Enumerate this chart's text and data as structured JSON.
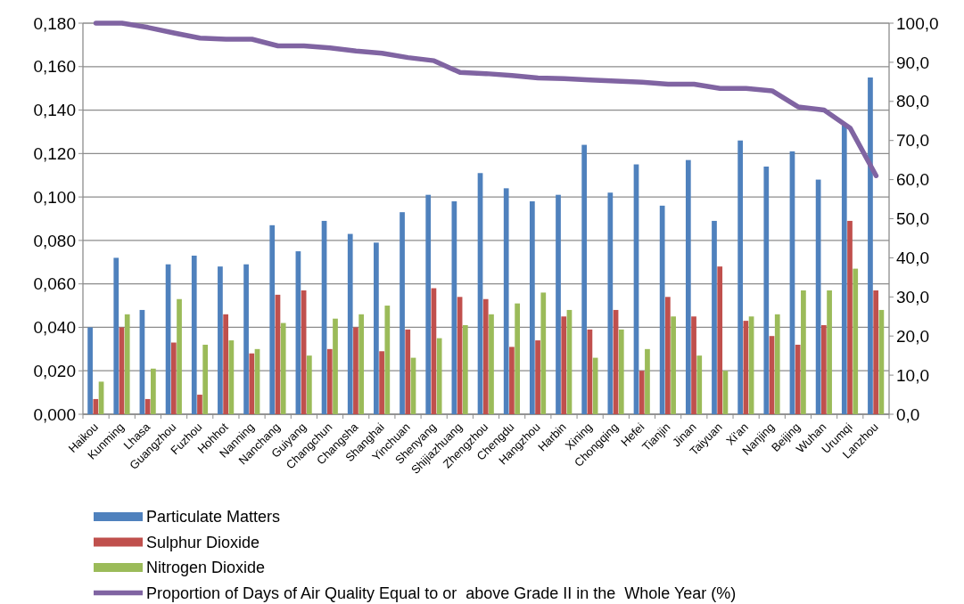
{
  "chart_data": {
    "type": "bar",
    "categories": [
      "Haikou",
      "Kunming",
      "Lhasa",
      "Guangzhou",
      "Fuzhou",
      "Hohhot",
      "Nanning",
      "Nanchang",
      "Guiyang",
      "Changchun",
      "Changsha",
      "Shanghai",
      "Yinchuan",
      "Shenyang",
      "Shijiazhuang",
      "Zhengzhou",
      "Chengdu",
      "Hangzhou",
      "Harbin",
      "Xining",
      "Chongqing",
      "Hefei",
      "Tianjin",
      "Jinan",
      "Taiyuan",
      "Xi'an",
      "Nanjing",
      "Beijing",
      "Wuhan",
      "Urumqi",
      "Lanzhou"
    ],
    "series": [
      {
        "name": "Particulate Matters",
        "color": "#4f81bd",
        "values": [
          0.04,
          0.072,
          0.048,
          0.069,
          0.073,
          0.068,
          0.069,
          0.087,
          0.075,
          0.089,
          0.083,
          0.079,
          0.093,
          0.101,
          0.098,
          0.111,
          0.104,
          0.098,
          0.101,
          0.124,
          0.102,
          0.115,
          0.096,
          0.117,
          0.089,
          0.126,
          0.114,
          0.121,
          0.108,
          0.133,
          0.155
        ]
      },
      {
        "name": "Sulphur Dioxide",
        "color": "#c0504d",
        "values": [
          0.007,
          0.04,
          0.007,
          0.033,
          0.009,
          0.046,
          0.028,
          0.055,
          0.057,
          0.03,
          0.04,
          0.029,
          0.039,
          0.058,
          0.054,
          0.053,
          0.031,
          0.034,
          0.045,
          0.039,
          0.048,
          0.02,
          0.054,
          0.045,
          0.068,
          0.043,
          0.036,
          0.032,
          0.041,
          0.089,
          0.057
        ]
      },
      {
        "name": "Nitrogen Dioxide",
        "color": "#9bbb59",
        "values": [
          0.015,
          0.046,
          0.021,
          0.053,
          0.032,
          0.034,
          0.03,
          0.042,
          0.027,
          0.044,
          0.046,
          0.05,
          0.026,
          0.035,
          0.041,
          0.046,
          0.051,
          0.056,
          0.048,
          0.026,
          0.039,
          0.03,
          0.045,
          0.027,
          0.02,
          0.045,
          0.046,
          0.057,
          0.057,
          0.067,
          0.048
        ]
      },
      {
        "name": "Proportion of Days of Air Quality Equal to or  above Grade II in the  Whole Year (%)",
        "type": "line",
        "axis": "y2",
        "color": "#8064a2",
        "values": [
          100,
          100,
          98.9,
          97.5,
          96.2,
          95.9,
          95.9,
          94.2,
          94.2,
          93.7,
          92.9,
          92.3,
          91.2,
          90.4,
          87.4,
          87.1,
          86.6,
          86.0,
          85.8,
          85.5,
          85.2,
          84.9,
          84.4,
          84.4,
          83.3,
          83.3,
          82.7,
          78.6,
          77.8,
          73.2,
          61
        ]
      }
    ],
    "ylim": [
      0,
      0.18
    ],
    "yticks": [
      {
        "value": 0,
        "label": "0,000"
      },
      {
        "value": 0.02,
        "label": "0,020"
      },
      {
        "value": 0.04,
        "label": "0,040"
      },
      {
        "value": 0.06,
        "label": "0,060"
      },
      {
        "value": 0.08,
        "label": "0,080"
      },
      {
        "value": 0.1,
        "label": "0,100"
      },
      {
        "value": 0.12,
        "label": "0,120"
      },
      {
        "value": 0.14,
        "label": "0,140"
      },
      {
        "value": 0.16,
        "label": "0,160"
      },
      {
        "value": 0.18,
        "label": "0,180"
      }
    ],
    "y2lim": [
      0,
      100
    ],
    "y2ticks": [
      {
        "value": 0,
        "label": "0,0"
      },
      {
        "value": 10,
        "label": "10,0"
      },
      {
        "value": 20,
        "label": "20,0"
      },
      {
        "value": 30,
        "label": "30,0"
      },
      {
        "value": 40,
        "label": "40,0"
      },
      {
        "value": 50,
        "label": "50,0"
      },
      {
        "value": 60,
        "label": "60,0"
      },
      {
        "value": 70,
        "label": "70,0"
      },
      {
        "value": 80,
        "label": "80,0"
      },
      {
        "value": 90,
        "label": "90,0"
      },
      {
        "value": 100,
        "label": "100,0"
      }
    ],
    "grid": "y",
    "legend": "bottom",
    "marker": "none",
    "line_style": "solid"
  }
}
